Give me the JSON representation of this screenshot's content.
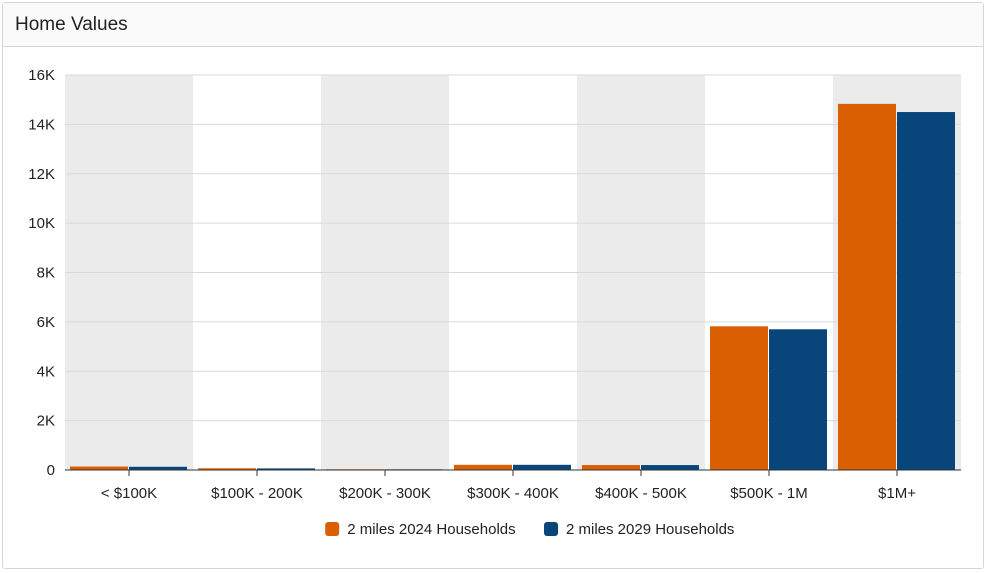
{
  "panel": {
    "title": "Home Values"
  },
  "chart_data": {
    "type": "bar",
    "title": "Home Values",
    "categories": [
      "< $100K",
      "$100K - 200K",
      "$200K - 300K",
      "$300K - 400K",
      "$400K - 500K",
      "$500K - 1M",
      "$1M+"
    ],
    "series": [
      {
        "name": "2 miles 2024 Households",
        "color": "#d95f02",
        "values": [
          140,
          70,
          30,
          210,
          200,
          5820,
          14830
        ]
      },
      {
        "name": "2 miles 2029 Households",
        "color": "#08457a",
        "values": [
          130,
          65,
          28,
          210,
          200,
          5700,
          14500
        ]
      }
    ],
    "ylim": [
      0,
      16000
    ],
    "yticks": [
      0,
      2000,
      4000,
      6000,
      8000,
      10000,
      12000,
      14000,
      16000
    ],
    "ytick_labels": [
      "0",
      "2K",
      "4K",
      "6K",
      "8K",
      "10K",
      "12K",
      "14K",
      "16K"
    ],
    "xlabel": "",
    "ylabel": "",
    "grid": true,
    "legend_position": "bottom-center",
    "band_colors": [
      "#ebebeb",
      "#ffffff"
    ]
  }
}
